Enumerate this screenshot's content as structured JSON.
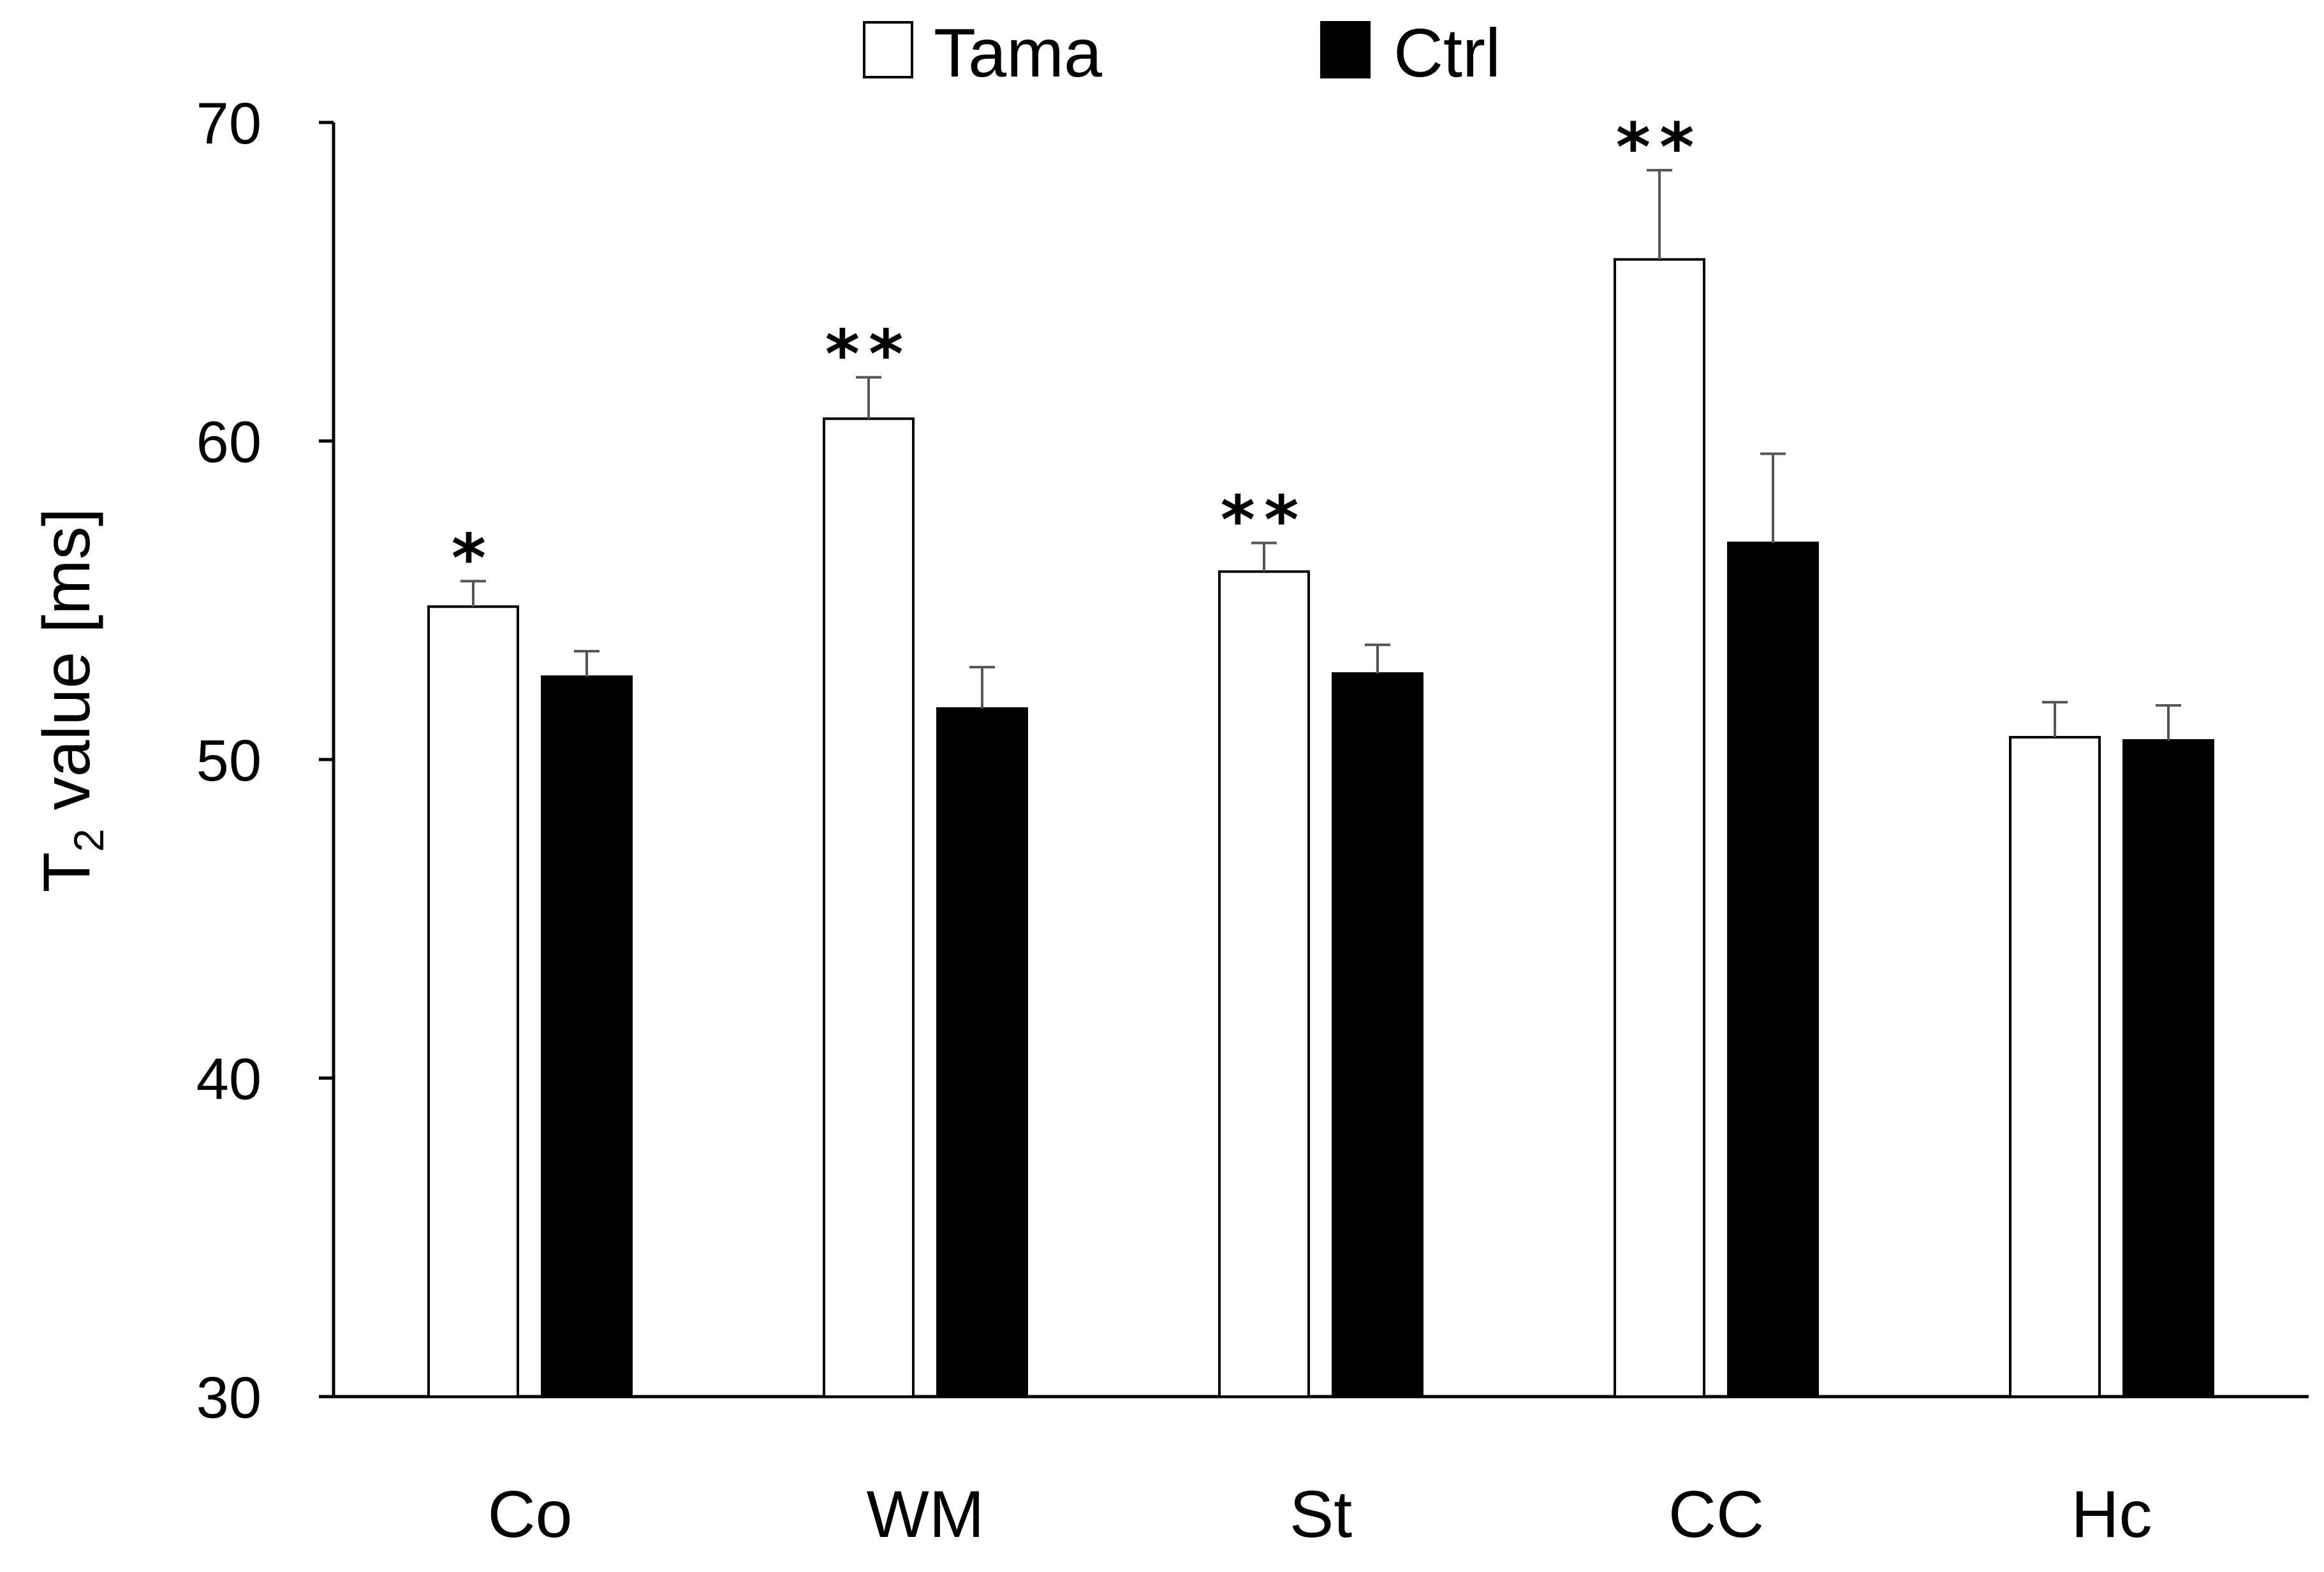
{
  "chart_data": {
    "type": "bar",
    "title": "",
    "xlabel": "",
    "ylabel": {
      "prefix": "T",
      "subscript": "2",
      "suffix": " value [ms]"
    },
    "ylim": [
      30,
      70
    ],
    "yticks": [
      "30",
      "40",
      "50",
      "60",
      "70"
    ],
    "categories": [
      "Co",
      "WM",
      "St",
      "CC",
      "Hc"
    ],
    "series": [
      {
        "name": "Tama",
        "color": "#ffffff",
        "values": [
          54.8,
          60.7,
          55.9,
          65.7,
          50.7
        ],
        "errors": [
          0.8,
          1.3,
          0.9,
          2.8,
          1.1
        ]
      },
      {
        "name": "Ctrl",
        "color": "#000000",
        "values": [
          52.6,
          51.6,
          52.7,
          56.8,
          50.6
        ],
        "errors": [
          0.8,
          1.3,
          0.9,
          2.8,
          1.1
        ]
      }
    ],
    "significance": [
      "*",
      "**",
      "**",
      "**",
      ""
    ],
    "legend_position": "top-center"
  }
}
